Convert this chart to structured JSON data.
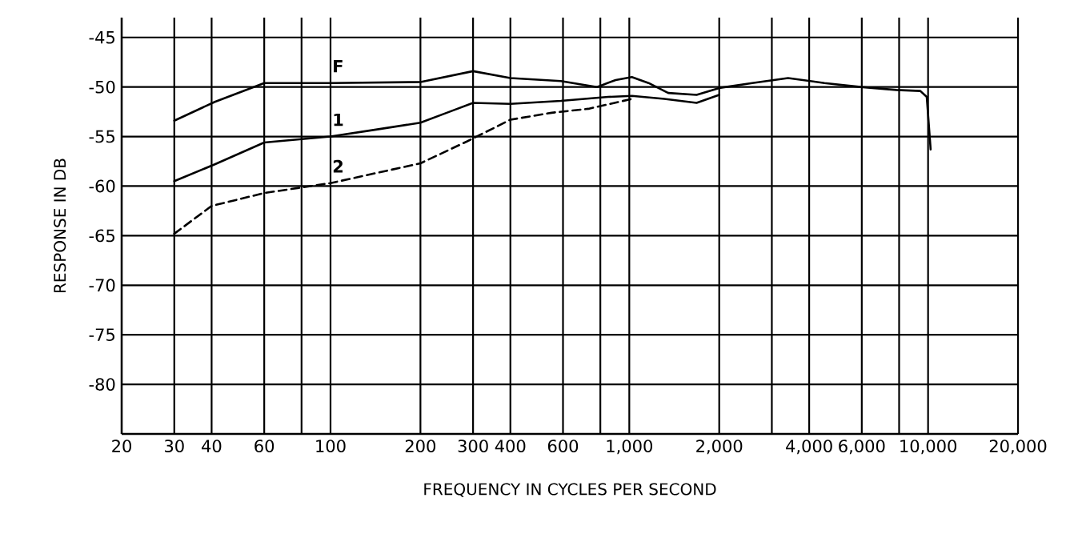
{
  "chart_data": {
    "type": "line",
    "xlabel": "FREQUENCY IN CYCLES PER SECOND",
    "ylabel": "RESPONSE IN DB",
    "log": "x",
    "grid": true,
    "marker": "none",
    "xlim": [
      20,
      20000
    ],
    "ylim": [
      -85,
      -43
    ],
    "xticks": [
      20,
      30,
      40,
      60,
      {
        "value": 80,
        "label": null
      },
      {
        "value": 100,
        "label": "100"
      },
      200,
      300,
      400,
      600,
      {
        "value": 800,
        "label": null
      },
      {
        "value": 1000,
        "label": "1,000"
      },
      {
        "value": 2000,
        "label": "2,000"
      },
      {
        "value": 3000,
        "label": null
      },
      {
        "value": 4000,
        "label": "4,000"
      },
      {
        "value": 6000,
        "label": "6,000"
      },
      {
        "value": 8000,
        "label": null
      },
      {
        "value": 10000,
        "label": "10,000"
      },
      {
        "value": 20000,
        "label": "20,000"
      }
    ],
    "yticks": [
      -45,
      -50,
      -55,
      -60,
      -65,
      -70,
      -75,
      -80
    ],
    "series": [
      {
        "name": "F",
        "color": "#000000",
        "line_style": "solid",
        "x": [
          30,
          41,
          60,
          100,
          200,
          300,
          400,
          590,
          780,
          900,
          1020,
          1160,
          1350,
          1680,
          2000,
          2580,
          3400,
          4500,
          5940,
          7840,
          9420,
          9900,
          10200
        ],
        "values": [
          -53.4,
          -51.5,
          -49.6,
          -49.6,
          -49.5,
          -48.4,
          -49.1,
          -49.4,
          -50.0,
          -49.3,
          -49.0,
          -49.6,
          -50.6,
          -50.8,
          -50.1,
          -49.6,
          -49.1,
          -49.6,
          -50.0,
          -50.3,
          -50.4,
          -51.0,
          -56.3
        ]
      },
      {
        "name": "1",
        "color": "#000000",
        "line_style": "solid",
        "x": [
          30,
          41,
          60,
          100,
          142,
          200,
          250,
          300,
          400,
          590,
          850,
          1020,
          1310,
          1680,
          2000
        ],
        "values": [
          -59.5,
          -57.8,
          -55.6,
          -55.0,
          -54.3,
          -53.6,
          -52.5,
          -51.6,
          -51.7,
          -51.4,
          -51.0,
          -50.9,
          -51.2,
          -51.6,
          -50.8
        ]
      },
      {
        "name": "2",
        "color": "#000000",
        "line_style": "dashed",
        "x": [
          30,
          40,
          60,
          100,
          200,
          286,
          400,
          550,
          730,
          1020
        ],
        "values": [
          -64.8,
          -62.0,
          -60.7,
          -59.7,
          -57.7,
          -55.5,
          -53.3,
          -52.6,
          -52.2,
          -51.2
        ]
      }
    ]
  }
}
